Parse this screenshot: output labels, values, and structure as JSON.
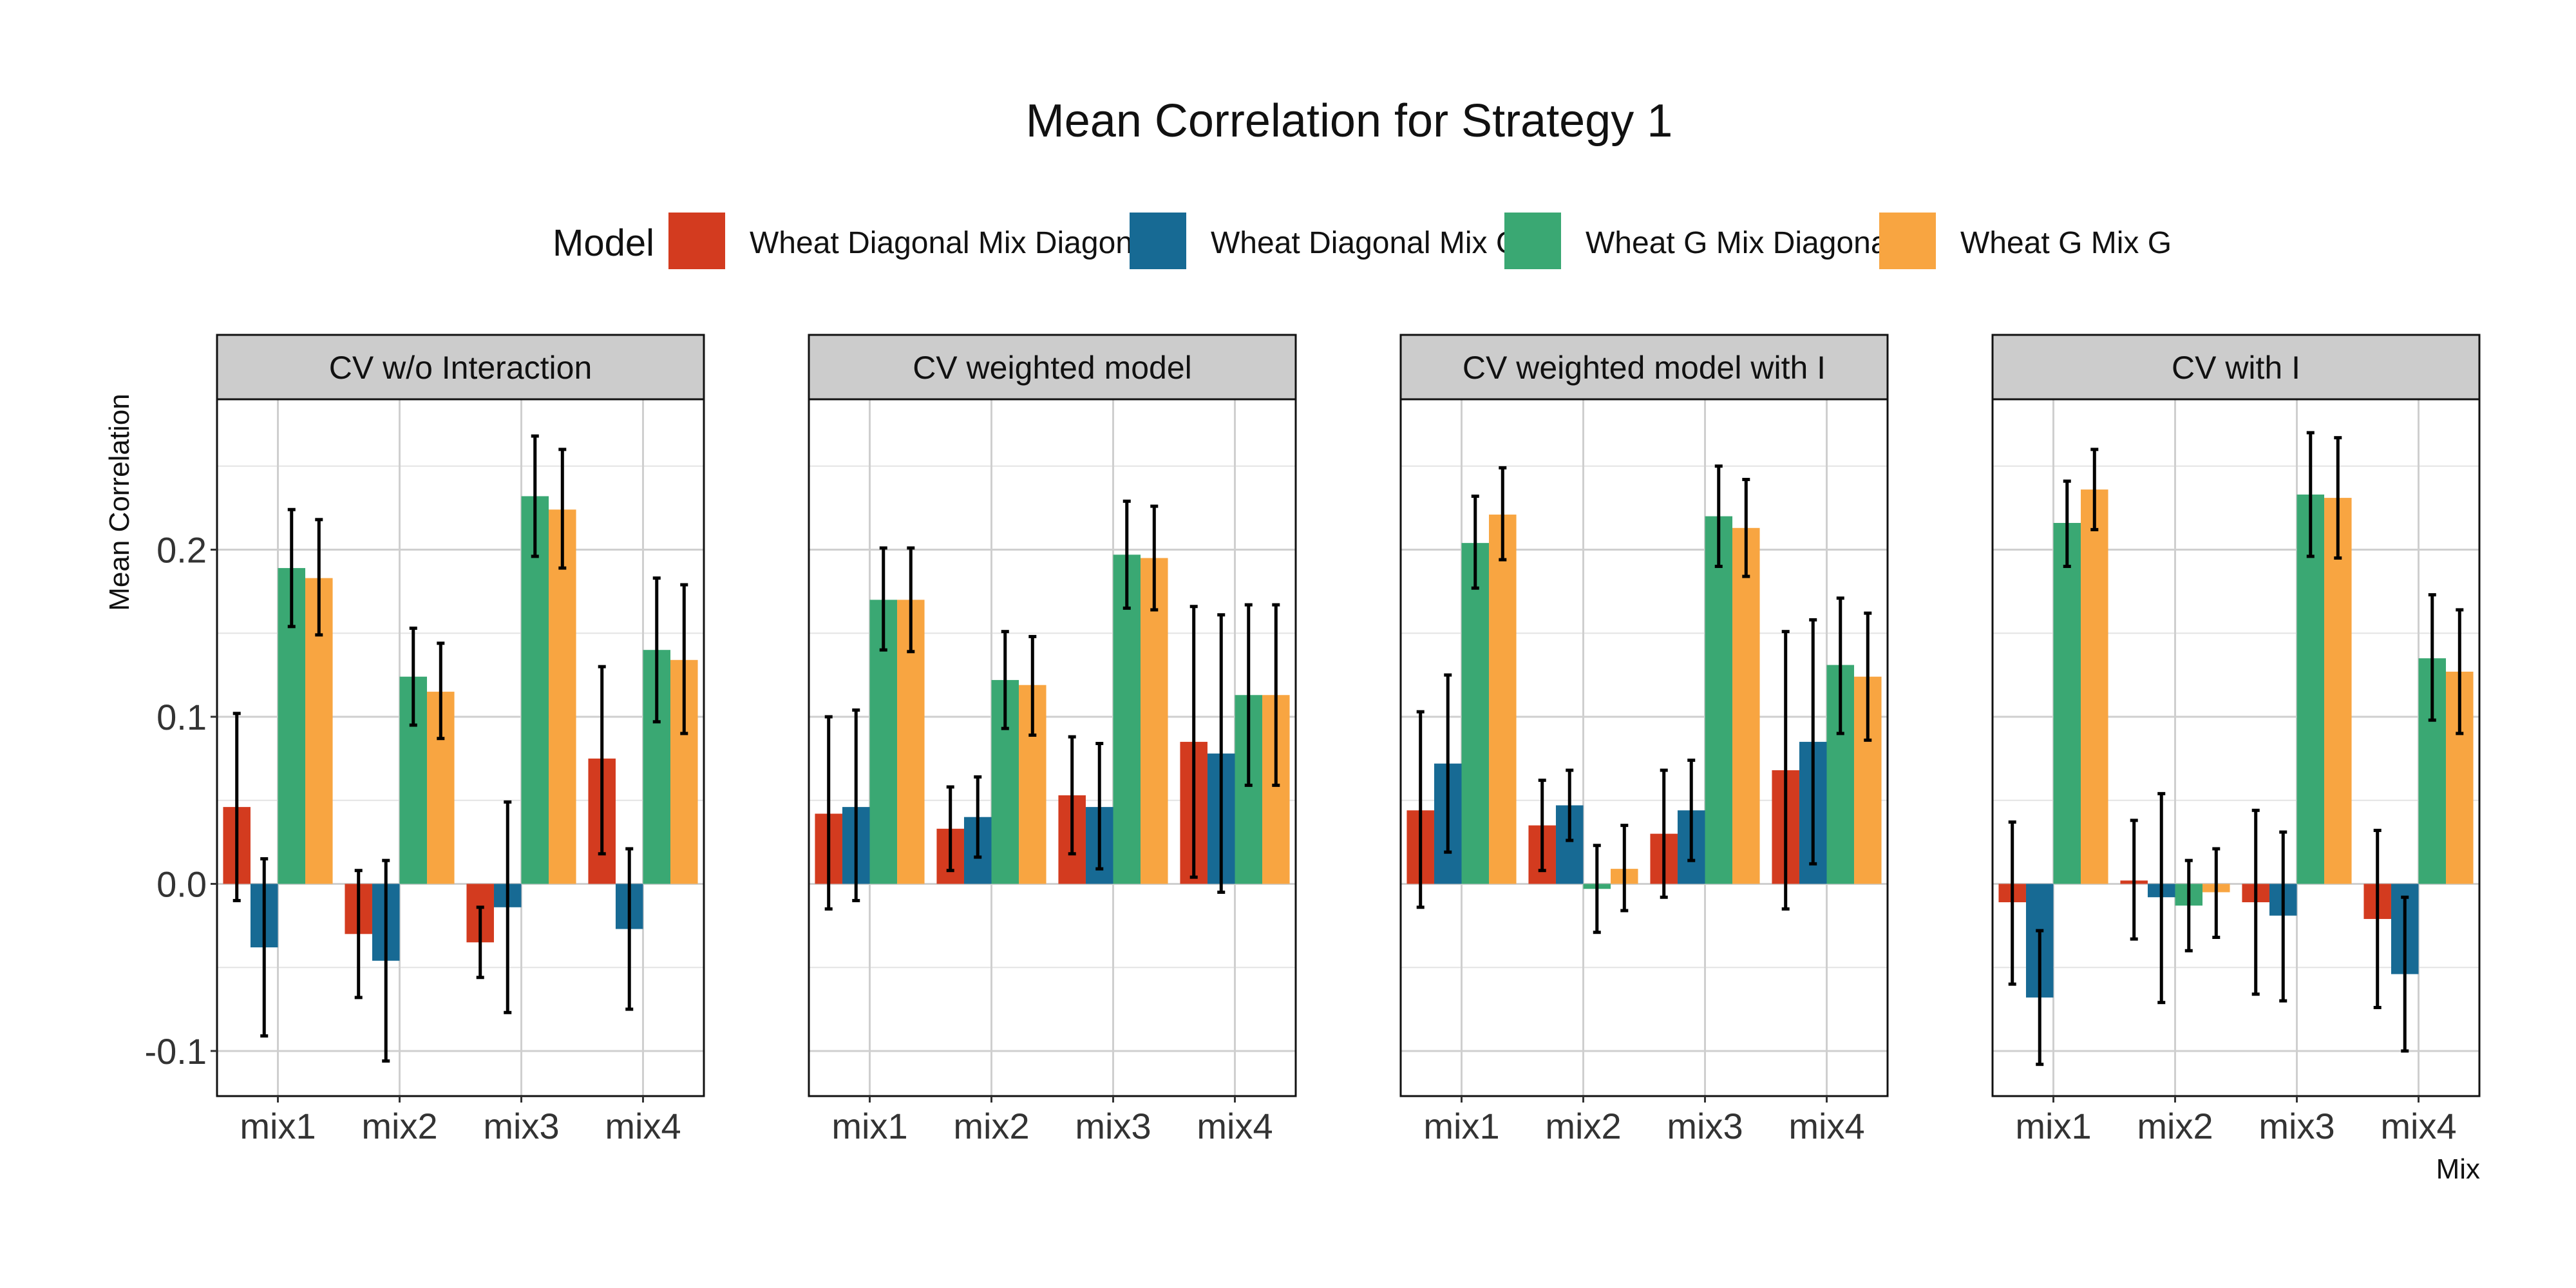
{
  "chart_data": {
    "type": "bar",
    "title": "Mean Correlation for Strategy 1",
    "xlabel": "Mix",
    "ylabel": "Mean Correlation",
    "ylim": [
      -0.127,
      0.29
    ],
    "y_ticks": [
      "-0.1",
      "0.0",
      "0.1",
      "0.2"
    ],
    "y_tick_values": [
      -0.1,
      0.0,
      0.1,
      0.2
    ],
    "categories": [
      "mix1",
      "mix2",
      "mix3",
      "mix4"
    ],
    "grid": true,
    "legend": {
      "title": "Model",
      "placement": "top",
      "entries": [
        {
          "name": "Wheat Diagonal Mix Diagonal",
          "color": "#d33b1f"
        },
        {
          "name": "Wheat Diagonal Mix G",
          "color": "#176a94"
        },
        {
          "name": "Wheat G Mix Diagonal",
          "color": "#3aa873"
        },
        {
          "name": "Wheat G Mix G",
          "color": "#f8a541"
        }
      ]
    },
    "panels": [
      {
        "title": "CV w/o Interaction",
        "series": [
          {
            "values": [
              0.046,
              -0.03,
              -0.035,
              0.075
            ],
            "lower": [
              -0.01,
              -0.068,
              -0.056,
              0.018
            ],
            "upper": [
              0.102,
              0.008,
              -0.014,
              0.13
            ]
          },
          {
            "values": [
              -0.038,
              -0.046,
              -0.014,
              -0.027
            ],
            "lower": [
              -0.091,
              -0.106,
              -0.077,
              -0.075
            ],
            "upper": [
              0.015,
              0.014,
              0.049,
              0.021
            ]
          },
          {
            "values": [
              0.189,
              0.124,
              0.232,
              0.14
            ],
            "lower": [
              0.154,
              0.095,
              0.196,
              0.097
            ],
            "upper": [
              0.224,
              0.153,
              0.268,
              0.183
            ]
          },
          {
            "values": [
              0.183,
              0.115,
              0.224,
              0.134
            ],
            "lower": [
              0.149,
              0.087,
              0.189,
              0.09
            ],
            "upper": [
              0.218,
              0.144,
              0.26,
              0.179
            ]
          }
        ]
      },
      {
        "title": "CV weighted model",
        "series": [
          {
            "values": [
              0.042,
              0.033,
              0.053,
              0.085
            ],
            "lower": [
              -0.015,
              0.008,
              0.018,
              0.004
            ],
            "upper": [
              0.1,
              0.058,
              0.088,
              0.166
            ]
          },
          {
            "values": [
              0.046,
              0.04,
              0.046,
              0.078
            ],
            "lower": [
              -0.01,
              0.016,
              0.009,
              -0.005
            ],
            "upper": [
              0.104,
              0.064,
              0.084,
              0.161
            ]
          },
          {
            "values": [
              0.17,
              0.122,
              0.197,
              0.113
            ],
            "lower": [
              0.14,
              0.093,
              0.165,
              0.059
            ],
            "upper": [
              0.201,
              0.151,
              0.229,
              0.167
            ]
          },
          {
            "values": [
              0.17,
              0.119,
              0.195,
              0.113
            ],
            "lower": [
              0.139,
              0.089,
              0.164,
              0.059
            ],
            "upper": [
              0.201,
              0.148,
              0.226,
              0.167
            ]
          }
        ]
      },
      {
        "title": "CV weighted model with I",
        "series": [
          {
            "values": [
              0.044,
              0.035,
              0.03,
              0.068
            ],
            "lower": [
              -0.014,
              0.008,
              -0.008,
              -0.015
            ],
            "upper": [
              0.103,
              0.062,
              0.068,
              0.151
            ]
          },
          {
            "values": [
              0.072,
              0.047,
              0.044,
              0.085
            ],
            "lower": [
              0.019,
              0.026,
              0.014,
              0.012
            ],
            "upper": [
              0.125,
              0.068,
              0.074,
              0.158
            ]
          },
          {
            "values": [
              0.204,
              -0.003,
              0.22,
              0.131
            ],
            "lower": [
              0.177,
              -0.029,
              0.19,
              0.09
            ],
            "upper": [
              0.232,
              0.023,
              0.25,
              0.171
            ]
          },
          {
            "values": [
              0.221,
              0.009,
              0.213,
              0.124
            ],
            "lower": [
              0.194,
              -0.016,
              0.184,
              0.086
            ],
            "upper": [
              0.249,
              0.035,
              0.242,
              0.162
            ]
          }
        ]
      },
      {
        "title": "CV with I",
        "series": [
          {
            "values": [
              -0.011,
              0.002,
              -0.011,
              -0.021
            ],
            "lower": [
              -0.06,
              -0.033,
              -0.066,
              -0.074
            ],
            "upper": [
              0.037,
              0.038,
              0.044,
              0.032
            ]
          },
          {
            "values": [
              -0.068,
              -0.008,
              -0.019,
              -0.054
            ],
            "lower": [
              -0.108,
              -0.071,
              -0.07,
              -0.1
            ],
            "upper": [
              -0.028,
              0.054,
              0.031,
              -0.008
            ]
          },
          {
            "values": [
              0.216,
              -0.013,
              0.233,
              0.135
            ],
            "lower": [
              0.19,
              -0.04,
              0.196,
              0.098
            ],
            "upper": [
              0.241,
              0.014,
              0.27,
              0.173
            ]
          },
          {
            "values": [
              0.236,
              -0.005,
              0.231,
              0.127
            ],
            "lower": [
              0.212,
              -0.032,
              0.195,
              0.09
            ],
            "upper": [
              0.26,
              0.021,
              0.267,
              0.164
            ]
          }
        ]
      }
    ]
  }
}
